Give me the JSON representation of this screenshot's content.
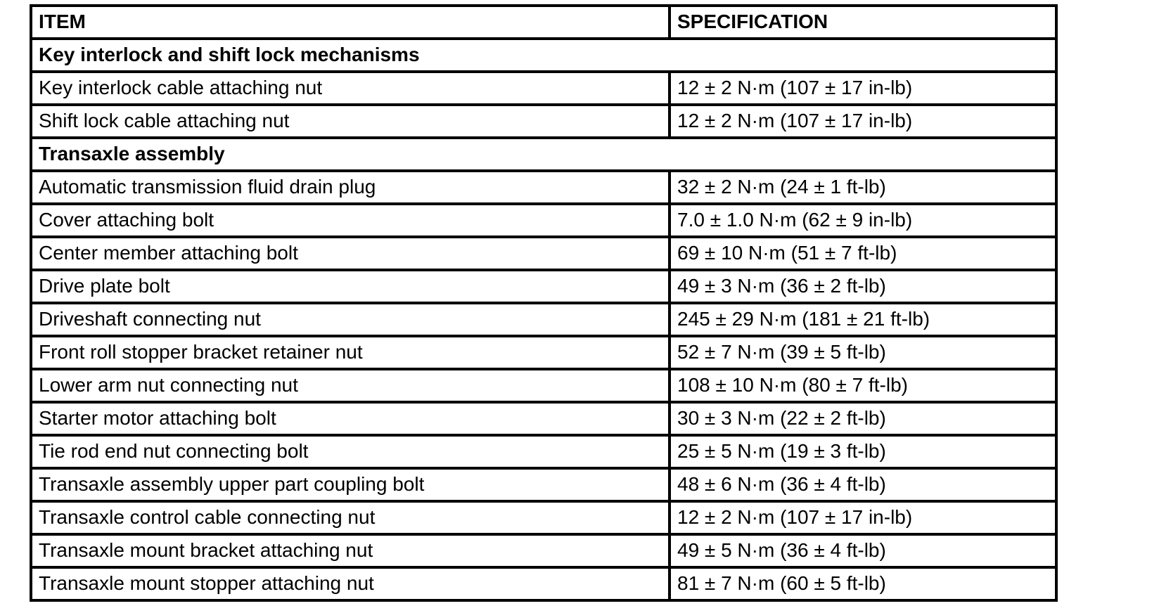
{
  "page": {
    "background_color": "#ffffff",
    "text_color": "#000000",
    "border_color": "#000000"
  },
  "table": {
    "columns": [
      "ITEM",
      "SPECIFICATION"
    ],
    "sections": [
      {
        "title": "Key interlock and shift lock mechanisms",
        "rows": [
          {
            "item": "Key interlock cable attaching nut",
            "spec": "12 ± 2 N·m (107 ± 17 in-lb)"
          },
          {
            "item": "Shift lock cable attaching nut",
            "spec": "12 ± 2 N·m (107 ± 17 in-lb)"
          }
        ]
      },
      {
        "title": "Transaxle assembly",
        "rows": [
          {
            "item": "Automatic transmission fluid drain plug",
            "spec": "32 ± 2 N·m (24 ± 1 ft-lb)"
          },
          {
            "item": "Cover attaching bolt",
            "spec": "7.0 ± 1.0 N·m (62 ± 9 in-lb)"
          },
          {
            "item": "Center member attaching bolt",
            "spec": "69 ± 10 N·m (51 ± 7 ft-lb)"
          },
          {
            "item": "Drive plate bolt",
            "spec": "49 ± 3 N·m (36 ± 2 ft-lb)"
          },
          {
            "item": "Driveshaft connecting nut",
            "spec": "245 ± 29 N·m (181 ± 21 ft-lb)"
          },
          {
            "item": "Front roll stopper bracket retainer nut",
            "spec": "52 ± 7 N·m (39 ± 5 ft-lb)"
          },
          {
            "item": "Lower arm nut connecting nut",
            "spec": "108 ± 10 N·m (80 ± 7 ft-lb)"
          },
          {
            "item": "Starter motor attaching bolt",
            "spec": "30 ± 3 N·m (22 ± 2 ft-lb)"
          },
          {
            "item": "Tie rod end nut connecting bolt",
            "spec": "25 ± 5 N·m (19 ± 3 ft-lb)"
          },
          {
            "item": "Transaxle assembly upper part coupling bolt",
            "spec": "48 ± 6 N·m (36 ± 4 ft-lb)"
          },
          {
            "item": "Transaxle control cable connecting nut",
            "spec": "12 ± 2 N·m (107 ± 17 in-lb)"
          },
          {
            "item": "Transaxle mount bracket attaching nut",
            "spec": "49 ± 5 N·m (36 ± 4 ft-lb)"
          },
          {
            "item": "Transaxle mount stopper attaching nut",
            "spec": "81 ± 7 N·m (60 ± 5 ft-lb)"
          }
        ]
      }
    ]
  }
}
